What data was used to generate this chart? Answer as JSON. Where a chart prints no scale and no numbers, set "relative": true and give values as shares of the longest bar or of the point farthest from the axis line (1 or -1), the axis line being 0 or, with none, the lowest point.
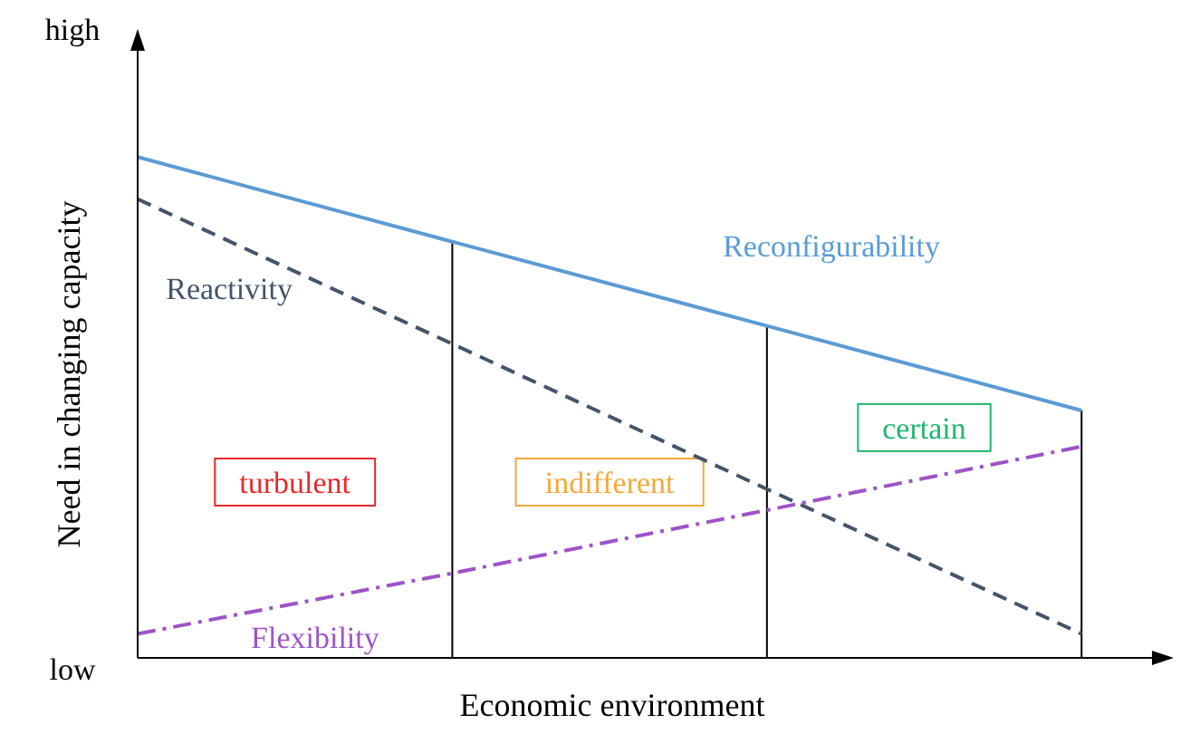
{
  "chart_data": {
    "type": "line",
    "xlabel": "Economic environment",
    "ylabel": "Need in changing capacity",
    "categories": [
      null,
      null,
      null,
      null
    ],
    "relative": true,
    "legend": false,
    "marker": "none",
    "series": [
      {
        "name": "Reconfigurability",
        "color": "#5b9bd5",
        "values": [
          1,
          0.831,
          0.663,
          0.494
        ],
        "line_style": "solid"
      },
      {
        "name": "Reactivity",
        "color": "#44546a",
        "values": [
          0.916,
          0.627,
          0.337,
          0.048
        ],
        "line_style": "dashed"
      },
      {
        "name": "Flexibility",
        "color": "#9e54c8",
        "values": [
          0.048,
          0.169,
          0.295,
          0.422
        ],
        "line_style": "dashdot"
      }
    ],
    "annotations": [
      "high",
      "low",
      "turbulent",
      "indifferent",
      "certain"
    ]
  }
}
